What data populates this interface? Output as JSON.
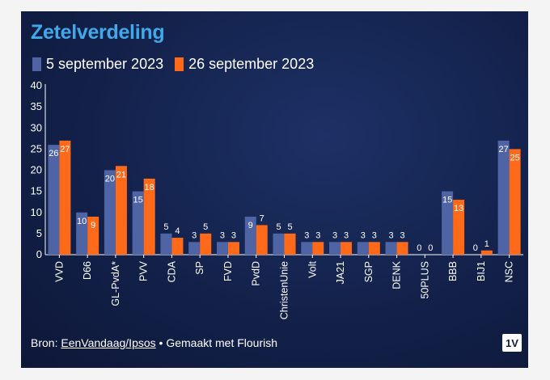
{
  "chart_data": {
    "type": "bar",
    "title": "Zetelverdeling",
    "xlabel": "",
    "ylabel": "",
    "ylim": [
      0,
      40
    ],
    "yticks": [
      0,
      5,
      10,
      15,
      20,
      25,
      30,
      35,
      40
    ],
    "categories": [
      "VVD",
      "D66",
      "GL-PvdA*",
      "PVV",
      "CDA",
      "SP",
      "FVD",
      "PvdD",
      "ChristenUnie",
      "Volt",
      "JA21",
      "SGP",
      "DENK",
      "50PLUS",
      "BBB",
      "BIJ1",
      "NSC"
    ],
    "series": [
      {
        "name": "5 september 2023",
        "color": "#4f64a4",
        "values": [
          26,
          10,
          20,
          15,
          5,
          3,
          3,
          9,
          5,
          3,
          3,
          3,
          3,
          0,
          15,
          0,
          27
        ]
      },
      {
        "name": "26 september 2023",
        "color": "#ff6a1a",
        "values": [
          27,
          9,
          21,
          18,
          4,
          5,
          3,
          7,
          5,
          3,
          3,
          3,
          3,
          0,
          13,
          1,
          25
        ]
      }
    ]
  },
  "footer": {
    "prefix": "Bron: ",
    "source_link": "EenVandaag/Ipsos",
    "suffix": " • Gemaakt met Flourish"
  },
  "badge": "1V"
}
